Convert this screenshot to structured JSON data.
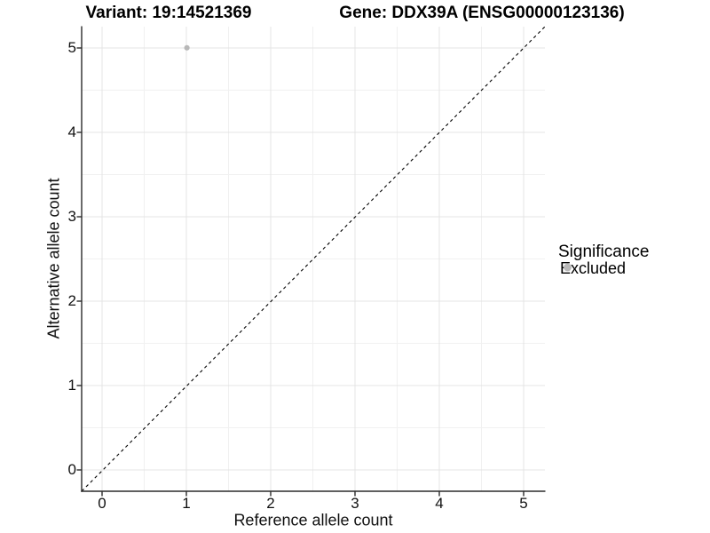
{
  "titles": {
    "variant": "Variant: 19:14521369",
    "gene": "Gene: DDX39A (ENSG00000123136)"
  },
  "axes": {
    "x_label": "Reference allele count",
    "y_label": "Alternative allele count",
    "x_ticks": [
      "0",
      "1",
      "2",
      "3",
      "4",
      "5"
    ],
    "y_ticks": [
      "0",
      "1",
      "2",
      "3",
      "4",
      "5"
    ]
  },
  "legend": {
    "title": "Significance",
    "items": [
      {
        "label": "Excluded",
        "marker": "dot-icon",
        "color": "#b8b8b8"
      }
    ]
  },
  "chart_data": {
    "type": "scatter",
    "title_left": "Variant: 19:14521369",
    "title_right": "Gene: DDX39A (ENSG00000123136)",
    "xlabel": "Reference allele count",
    "ylabel": "Alternative allele count",
    "xlim": [
      -0.25,
      5.25
    ],
    "ylim": [
      -0.25,
      5.25
    ],
    "x_tick_values": [
      0,
      1,
      2,
      3,
      4,
      5
    ],
    "y_tick_values": [
      0,
      1,
      2,
      3,
      4,
      5
    ],
    "grid": {
      "major": "on",
      "minor": "on",
      "major_color": "#e4e4e4",
      "minor_color": "#f1f1f1"
    },
    "legend_position": "right",
    "series": [
      {
        "name": "Excluded",
        "color": "#b8b8b8",
        "points": [
          [
            1,
            5
          ]
        ]
      }
    ],
    "reference_line": {
      "kind": "identity",
      "equation": "y = x",
      "style": "dashed",
      "color": "#000000"
    }
  },
  "colors": {
    "background": "#ffffff",
    "axis": "#2b2b2b",
    "tick_text": "#111111"
  }
}
